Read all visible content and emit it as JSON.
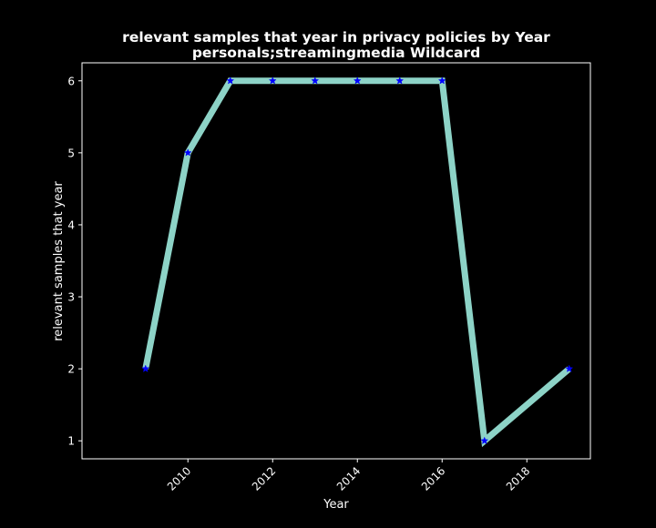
{
  "chart_data": {
    "type": "line",
    "title": "relevant samples that year in privacy policies by Year",
    "subtitle": "personals;streamingmedia Wildcard",
    "xlabel": "Year",
    "ylabel": "relevant samples that year",
    "x": [
      2009,
      2010,
      2011,
      2012,
      2013,
      2014,
      2015,
      2016,
      2017,
      2019
    ],
    "series": [
      {
        "values": [
          2,
          5,
          6,
          6,
          6,
          6,
          6,
          6,
          1,
          2
        ]
      }
    ],
    "xlim": [
      2007.5,
      2019.5
    ],
    "ylim": [
      0.75,
      6.25
    ],
    "xticks": [
      "2010",
      "2012",
      "2014",
      "2016",
      "2018"
    ],
    "yticks": [
      "1",
      "2",
      "3",
      "4",
      "5",
      "6"
    ],
    "grid": false,
    "legend": "none",
    "colors": {
      "background": "#000000",
      "line": "#8dd3c7",
      "marker": "#0000ff",
      "text": "#ffffff",
      "axes": "#ffffff"
    }
  }
}
